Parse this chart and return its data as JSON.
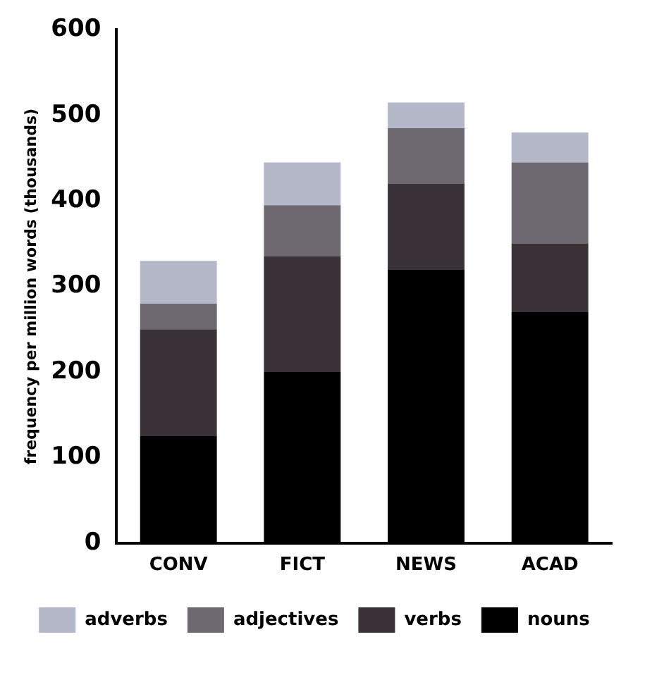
{
  "chart_data": {
    "type": "bar",
    "stacked": true,
    "ylabel": "frequency per million words (thousands)",
    "categories": [
      "CONV",
      "FICT",
      "NEWS",
      "ACAD"
    ],
    "series": [
      {
        "name": "nouns",
        "color": "#000000",
        "values": [
          125,
          200,
          320,
          270
        ]
      },
      {
        "name": "verbs",
        "color": "#3a3236",
        "values": [
          125,
          135,
          100,
          80
        ]
      },
      {
        "name": "adjectives",
        "color": "#6e6870",
        "values": [
          30,
          60,
          65,
          95
        ]
      },
      {
        "name": "adverbs",
        "color": "#b4b8c8",
        "values": [
          50,
          50,
          30,
          35
        ]
      }
    ],
    "ylim": [
      0,
      600
    ],
    "yticks": [
      0,
      100,
      200,
      300,
      400,
      500,
      600
    ],
    "grid": false,
    "legend": "bottom"
  }
}
